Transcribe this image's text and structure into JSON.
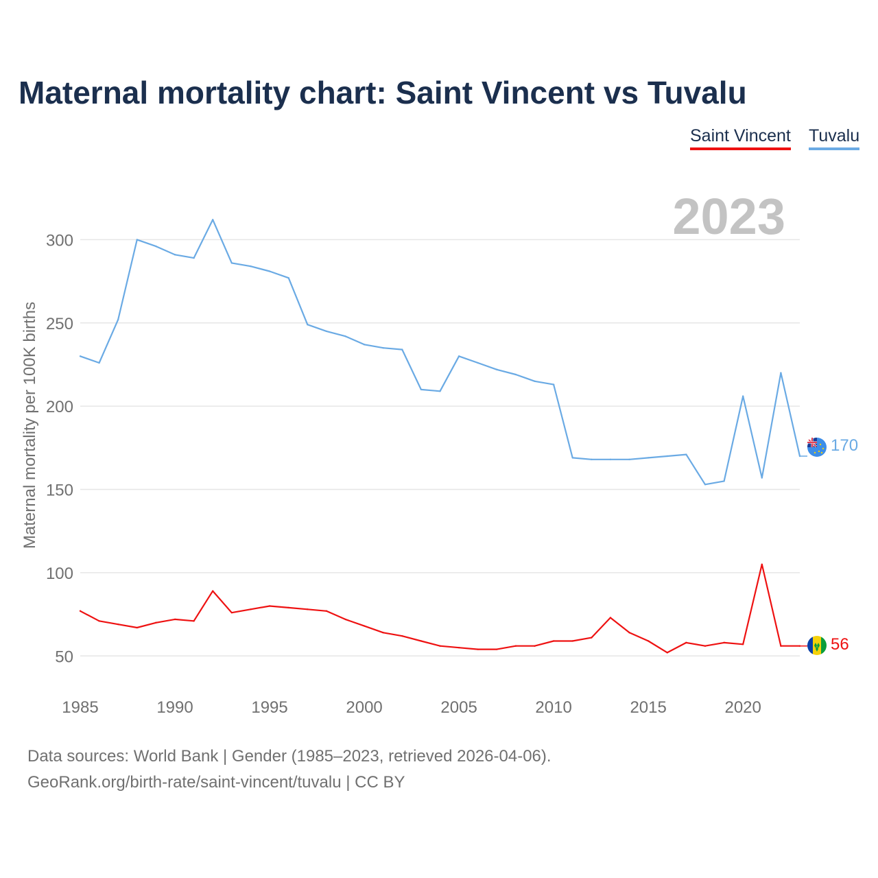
{
  "title": "Maternal mortality chart: Saint Vincent vs Tuvalu",
  "legend": {
    "saint_vincent": "Saint Vincent",
    "tuvalu": "Tuvalu"
  },
  "year_label": "2023",
  "footer": {
    "line1": "Data sources: World Bank | Gender (1985–2023, retrieved 2026-04-06).",
    "line2": "GeoRank.org/birth-rate/saint-vincent/tuvalu | CC BY"
  },
  "chart_data": {
    "type": "line",
    "title": "Maternal mortality chart: Saint Vincent vs Tuvalu",
    "xlabel": "",
    "ylabel": "Maternal mortality per 100K births",
    "xlim": [
      1985,
      2023
    ],
    "ylim": [
      32,
      322
    ],
    "grid": true,
    "legend": "top-right",
    "x_ticks": [
      1985,
      1990,
      1995,
      2000,
      2005,
      2010,
      2015,
      2020
    ],
    "y_ticks": [
      50,
      100,
      150,
      200,
      250,
      300
    ],
    "x": [
      1985,
      1986,
      1987,
      1988,
      1989,
      1990,
      1991,
      1992,
      1993,
      1994,
      1995,
      1996,
      1997,
      1998,
      1999,
      2000,
      2001,
      2002,
      2003,
      2004,
      2005,
      2006,
      2007,
      2008,
      2009,
      2010,
      2011,
      2012,
      2013,
      2014,
      2015,
      2016,
      2017,
      2018,
      2019,
      2020,
      2021,
      2022,
      2023
    ],
    "series": [
      {
        "name": "Tuvalu",
        "color": "#6aaae4",
        "end_label": "170",
        "values": [
          230,
          226,
          252,
          300,
          296,
          291,
          289,
          312,
          286,
          284,
          281,
          277,
          249,
          245,
          242,
          237,
          235,
          234,
          210,
          209,
          230,
          226,
          222,
          219,
          215,
          213,
          169,
          168,
          168,
          168,
          169,
          170,
          171,
          153,
          155,
          206,
          157,
          220,
          170
        ]
      },
      {
        "name": "Saint Vincent",
        "color": "#ee1111",
        "end_label": "56",
        "values": [
          77,
          71,
          69,
          67,
          70,
          72,
          71,
          89,
          76,
          78,
          80,
          79,
          78,
          77,
          72,
          68,
          64,
          62,
          59,
          56,
          55,
          54,
          54,
          56,
          56,
          59,
          59,
          61,
          73,
          64,
          59,
          52,
          58,
          56,
          58,
          57,
          105,
          56,
          56
        ]
      }
    ]
  }
}
